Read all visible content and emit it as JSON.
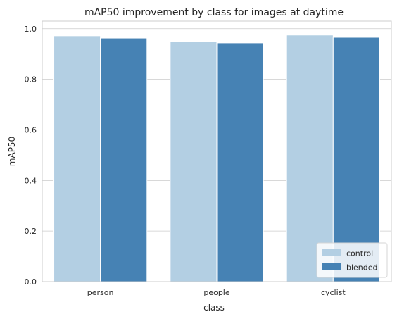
{
  "chart_data": {
    "type": "bar",
    "title": "mAP50 improvement by class for images at daytime",
    "xlabel": "class",
    "ylabel": "mAP50",
    "categories": [
      "person",
      "people",
      "cyclist"
    ],
    "series": [
      {
        "name": "control",
        "values": [
          0.972,
          0.95,
          0.975
        ],
        "color": "#b3cfe3"
      },
      {
        "name": "blended",
        "values": [
          0.963,
          0.944,
          0.966
        ],
        "color": "#4682b4"
      }
    ],
    "ylim": [
      0,
      1.03
    ],
    "yticks": [
      "0.0",
      "0.2",
      "0.4",
      "0.6",
      "0.8",
      "1.0"
    ],
    "grid": true,
    "legend_position": "lower-right"
  }
}
